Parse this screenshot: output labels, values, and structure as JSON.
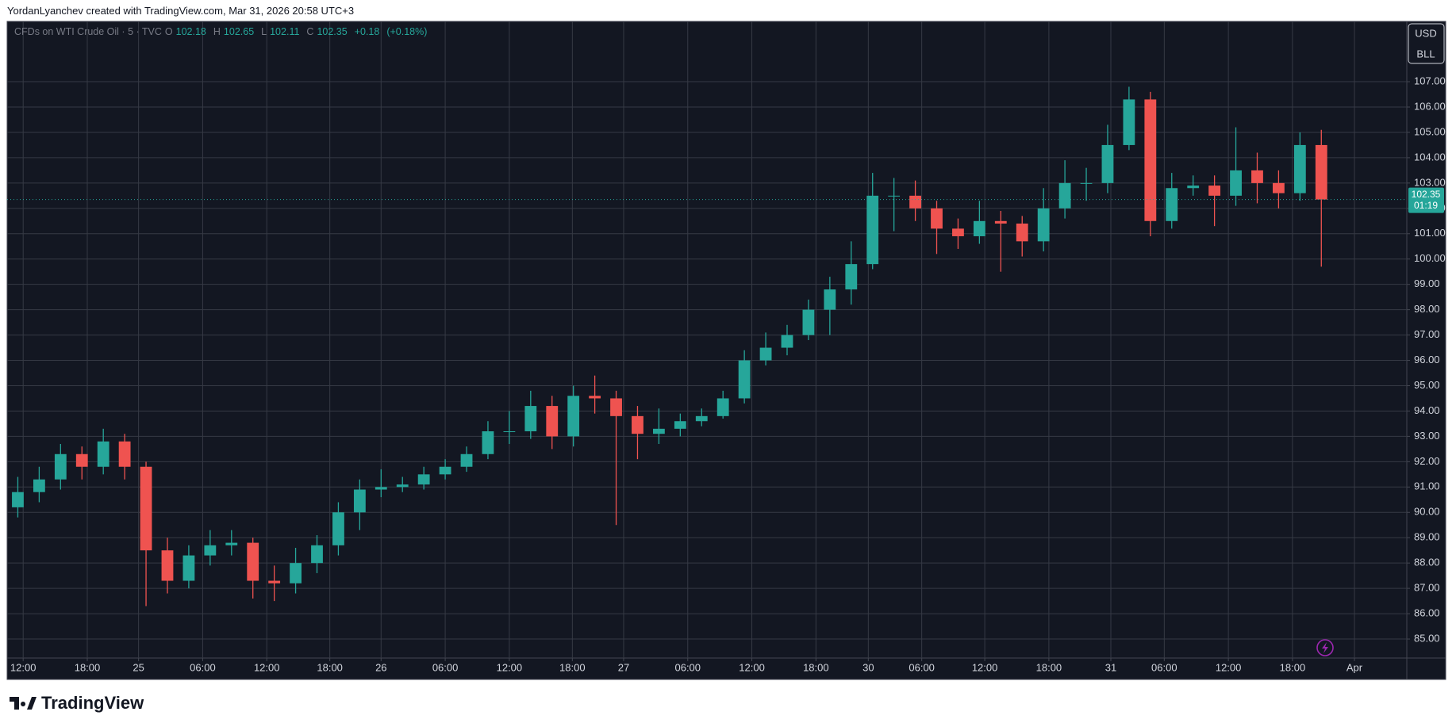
{
  "header": "YordanLyanchev created with TradingView.com, Mar 31, 2026 20:58 UTC+3",
  "brand": "TradingView",
  "chart_data": {
    "type": "candlestick",
    "legend": {
      "symbol": "CFDs on WTI Crude Oil · 5 · TVC",
      "fields": [
        {
          "label": "O",
          "value": 102.18
        },
        {
          "label": "H",
          "value": 102.65
        },
        {
          "label": "L",
          "value": 102.11
        },
        {
          "label": "C",
          "value": 102.35
        }
      ],
      "change": {
        "value": 0.18,
        "label": "+0.18"
      },
      "change_pct": {
        "value": 0.18,
        "label": "(+0.18%)"
      }
    },
    "currency": [
      "USD",
      "BLL"
    ],
    "last_price": {
      "value": 102.35,
      "label": "102.35"
    },
    "countdown": "01:19",
    "up_color": "#26a69a",
    "down_color": "#ef5350",
    "grid": true,
    "open": [
      90.2,
      90.8,
      91.3,
      92.3,
      91.8,
      92.8,
      91.8,
      88.5,
      87.3,
      88.3,
      88.7,
      88.8,
      87.3,
      87.2,
      88.0,
      88.7,
      90.0,
      90.9,
      91.0,
      91.1,
      91.5,
      91.8,
      92.3,
      93.2,
      93.2,
      94.2,
      93.0,
      94.6,
      94.5,
      93.8,
      93.1,
      93.3,
      93.6,
      93.8,
      94.5,
      96.0,
      96.5,
      97.0,
      98.0,
      98.8,
      99.8,
      102.5,
      102.5,
      102.0,
      101.2,
      100.9,
      101.5,
      101.4,
      100.7,
      102.0,
      103.0,
      103.0,
      104.5,
      106.3,
      101.5,
      102.8,
      102.9,
      102.5,
      103.5,
      103.0,
      102.6,
      104.5
    ],
    "high": [
      91.4,
      91.8,
      92.7,
      92.6,
      93.3,
      93.1,
      92.0,
      89.0,
      88.7,
      89.3,
      89.3,
      89.0,
      87.9,
      88.6,
      89.1,
      90.4,
      91.3,
      91.7,
      91.4,
      91.8,
      92.1,
      92.6,
      93.6,
      94.0,
      94.8,
      94.6,
      95.0,
      95.4,
      94.8,
      94.2,
      94.1,
      93.9,
      94.1,
      94.8,
      96.4,
      97.1,
      97.4,
      98.4,
      99.3,
      100.7,
      103.4,
      103.2,
      103.1,
      102.3,
      101.6,
      102.3,
      101.9,
      101.7,
      102.8,
      103.9,
      103.6,
      105.3,
      106.8,
      106.6,
      103.4,
      103.3,
      103.3,
      105.2,
      104.2,
      103.5,
      105.0,
      105.1
    ],
    "low": [
      89.8,
      90.4,
      90.9,
      91.3,
      91.5,
      91.3,
      86.3,
      86.8,
      87.0,
      87.9,
      88.3,
      86.6,
      86.5,
      86.8,
      87.6,
      88.3,
      89.3,
      90.6,
      90.8,
      90.9,
      91.3,
      91.6,
      92.1,
      92.7,
      92.9,
      92.5,
      92.6,
      93.9,
      89.5,
      92.1,
      92.7,
      93.0,
      93.4,
      93.7,
      94.3,
      95.8,
      96.2,
      96.8,
      97.0,
      98.2,
      99.6,
      101.1,
      101.5,
      100.2,
      100.4,
      100.6,
      99.5,
      100.1,
      100.3,
      101.6,
      102.3,
      102.6,
      104.3,
      100.9,
      101.2,
      102.5,
      101.3,
      102.1,
      102.2,
      102.0,
      102.3,
      99.7
    ],
    "close": [
      90.8,
      91.3,
      92.3,
      91.8,
      92.8,
      91.8,
      88.5,
      87.3,
      88.3,
      88.7,
      88.8,
      87.3,
      87.2,
      88.0,
      88.7,
      90.0,
      90.9,
      91.0,
      91.1,
      91.5,
      91.8,
      92.3,
      93.2,
      93.2,
      94.2,
      93.0,
      94.6,
      94.5,
      93.8,
      93.1,
      93.3,
      93.6,
      93.8,
      94.5,
      96.0,
      96.5,
      97.0,
      98.0,
      98.8,
      99.8,
      102.5,
      102.5,
      102.0,
      101.2,
      100.9,
      101.5,
      101.4,
      100.7,
      102.0,
      103.0,
      103.0,
      104.5,
      106.3,
      101.5,
      102.8,
      102.9,
      102.5,
      103.5,
      103.0,
      102.6,
      104.5,
      102.35
    ],
    "xlim": [
      0,
      131
    ],
    "xticks": [
      {
        "value": 1.5,
        "label": "12:00"
      },
      {
        "value": 7.5,
        "label": "18:00"
      },
      {
        "value": 12.3,
        "label": "25"
      },
      {
        "value": 18.3,
        "label": "06:00"
      },
      {
        "value": 24.3,
        "label": "12:00"
      },
      {
        "value": 30.2,
        "label": "18:00"
      },
      {
        "value": 35,
        "label": "26"
      },
      {
        "value": 41,
        "label": "06:00"
      },
      {
        "value": 47,
        "label": "12:00"
      },
      {
        "value": 52.9,
        "label": "18:00"
      },
      {
        "value": 57.7,
        "label": "27"
      },
      {
        "value": 63.7,
        "label": "06:00"
      },
      {
        "value": 69.7,
        "label": "12:00"
      },
      {
        "value": 75.7,
        "label": "18:00"
      },
      {
        "value": 80.6,
        "label": "30"
      },
      {
        "value": 85.6,
        "label": "06:00"
      },
      {
        "value": 91.5,
        "label": "12:00"
      },
      {
        "value": 97.5,
        "label": "18:00"
      },
      {
        "value": 103.3,
        "label": "31"
      },
      {
        "value": 108.3,
        "label": "06:00"
      },
      {
        "value": 114.3,
        "label": "12:00"
      },
      {
        "value": 120.3,
        "label": "18:00"
      },
      {
        "value": 126.1,
        "label": "Apr"
      }
    ],
    "ylim": [
      84.25,
      109.38
    ],
    "yticks": [
      {
        "value": 85,
        "label": "85.00"
      },
      {
        "value": 86,
        "label": "86.00"
      },
      {
        "value": 87,
        "label": "87.00"
      },
      {
        "value": 88,
        "label": "88.00"
      },
      {
        "value": 89,
        "label": "89.00"
      },
      {
        "value": 90,
        "label": "90.00"
      },
      {
        "value": 91,
        "label": "91.00"
      },
      {
        "value": 92,
        "label": "92.00"
      },
      {
        "value": 93,
        "label": "93.00"
      },
      {
        "value": 94,
        "label": "94.00"
      },
      {
        "value": 95,
        "label": "95.00"
      },
      {
        "value": 96,
        "label": "96.00"
      },
      {
        "value": 97,
        "label": "97.00"
      },
      {
        "value": 98,
        "label": "98.00"
      },
      {
        "value": 99,
        "label": "99.00"
      },
      {
        "value": 100,
        "label": "100.00"
      },
      {
        "value": 101,
        "label": "101.00"
      },
      {
        "value": 102,
        "label": "102.00"
      },
      {
        "value": 103,
        "label": "103.00"
      },
      {
        "value": 104,
        "label": "104.00"
      },
      {
        "value": 105,
        "label": "105.00"
      },
      {
        "value": 106,
        "label": "106.00"
      },
      {
        "value": 107,
        "label": "107.00"
      }
    ]
  }
}
